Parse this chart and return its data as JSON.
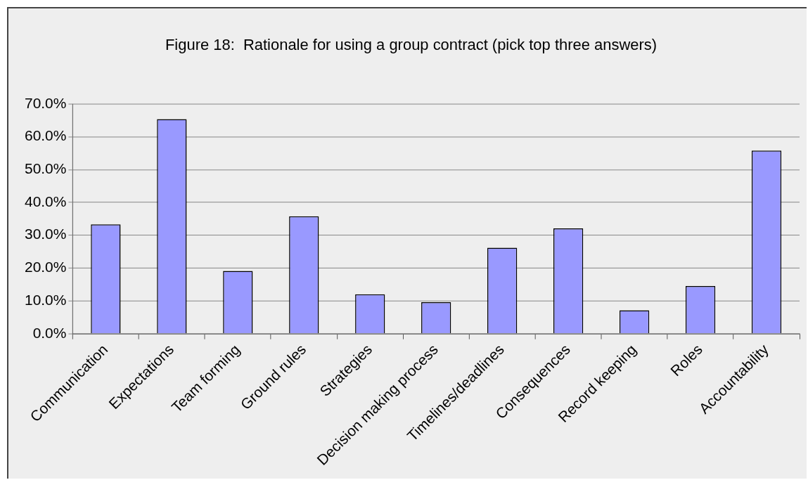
{
  "chart_data": {
    "type": "bar",
    "title": "Figure 18:  Rationale for using a group contract (pick top three answers)",
    "categories": [
      "Communication",
      "Expectations",
      "Team forming",
      "Ground rules",
      "Strategies",
      "Decision making process",
      "Timelines/deadlines",
      "Consequences",
      "Record keeping",
      "Roles",
      "Accountability"
    ],
    "values": [
      33.3,
      65.4,
      19.1,
      35.8,
      12.0,
      9.6,
      26.2,
      32.1,
      7.1,
      14.5,
      55.8
    ],
    "color": "#9999ff",
    "ylim": [
      0,
      70
    ],
    "yticks": [
      {
        "value": 0,
        "label": "0.0%"
      },
      {
        "value": 10,
        "label": "10.0%"
      },
      {
        "value": 20,
        "label": "20.0%"
      },
      {
        "value": 30,
        "label": "30.0%"
      },
      {
        "value": 40,
        "label": "40.0%"
      },
      {
        "value": 50,
        "label": "50.0%"
      },
      {
        "value": 60,
        "label": "60.0%"
      },
      {
        "value": 70,
        "label": "70.0%"
      }
    ],
    "grid": "y",
    "legend": false
  }
}
